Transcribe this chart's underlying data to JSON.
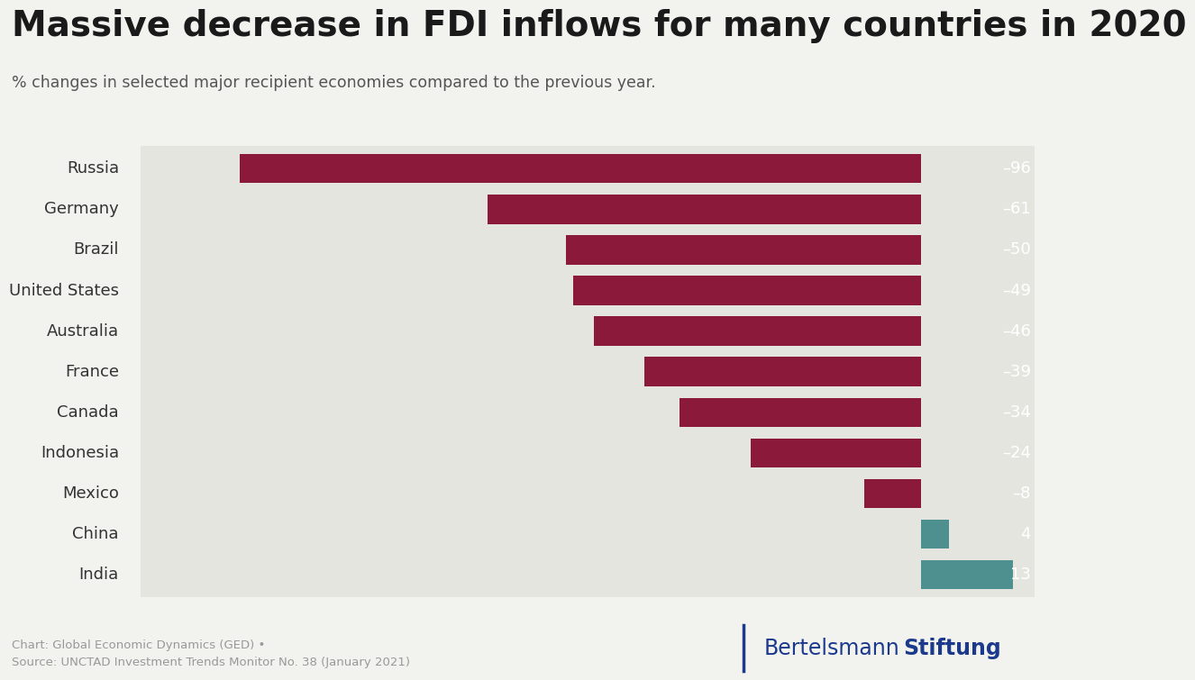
{
  "title": "Massive decrease in FDI inflows for many countries in 2020",
  "subtitle": "% changes in selected major recipient economies compared to the previous year.",
  "countries": [
    "Russia",
    "Germany",
    "Brazil",
    "United States",
    "Australia",
    "France",
    "Canada",
    "Indonesia",
    "Mexico",
    "China",
    "India"
  ],
  "values": [
    -96,
    -61,
    -50,
    -49,
    -46,
    -39,
    -34,
    -24,
    -8,
    4,
    13
  ],
  "bar_color_negative": "#8B1A3A",
  "bar_color_positive": "#4E9090",
  "background_color": "#F2F2EF",
  "bar_background": "#E5E5E0",
  "title_fontsize": 28,
  "subtitle_fontsize": 12.5,
  "label_fontsize": 13,
  "value_fontsize": 13,
  "footer_text_left": "Chart: Global Economic Dynamics (GED) •\nSource: UNCTAD Investment Trends Monitor No. 38 (January 2021)",
  "footer_color": "#999999",
  "logo_color": "#1B3A8C",
  "xlim_min": -110,
  "xlim_max": 16
}
